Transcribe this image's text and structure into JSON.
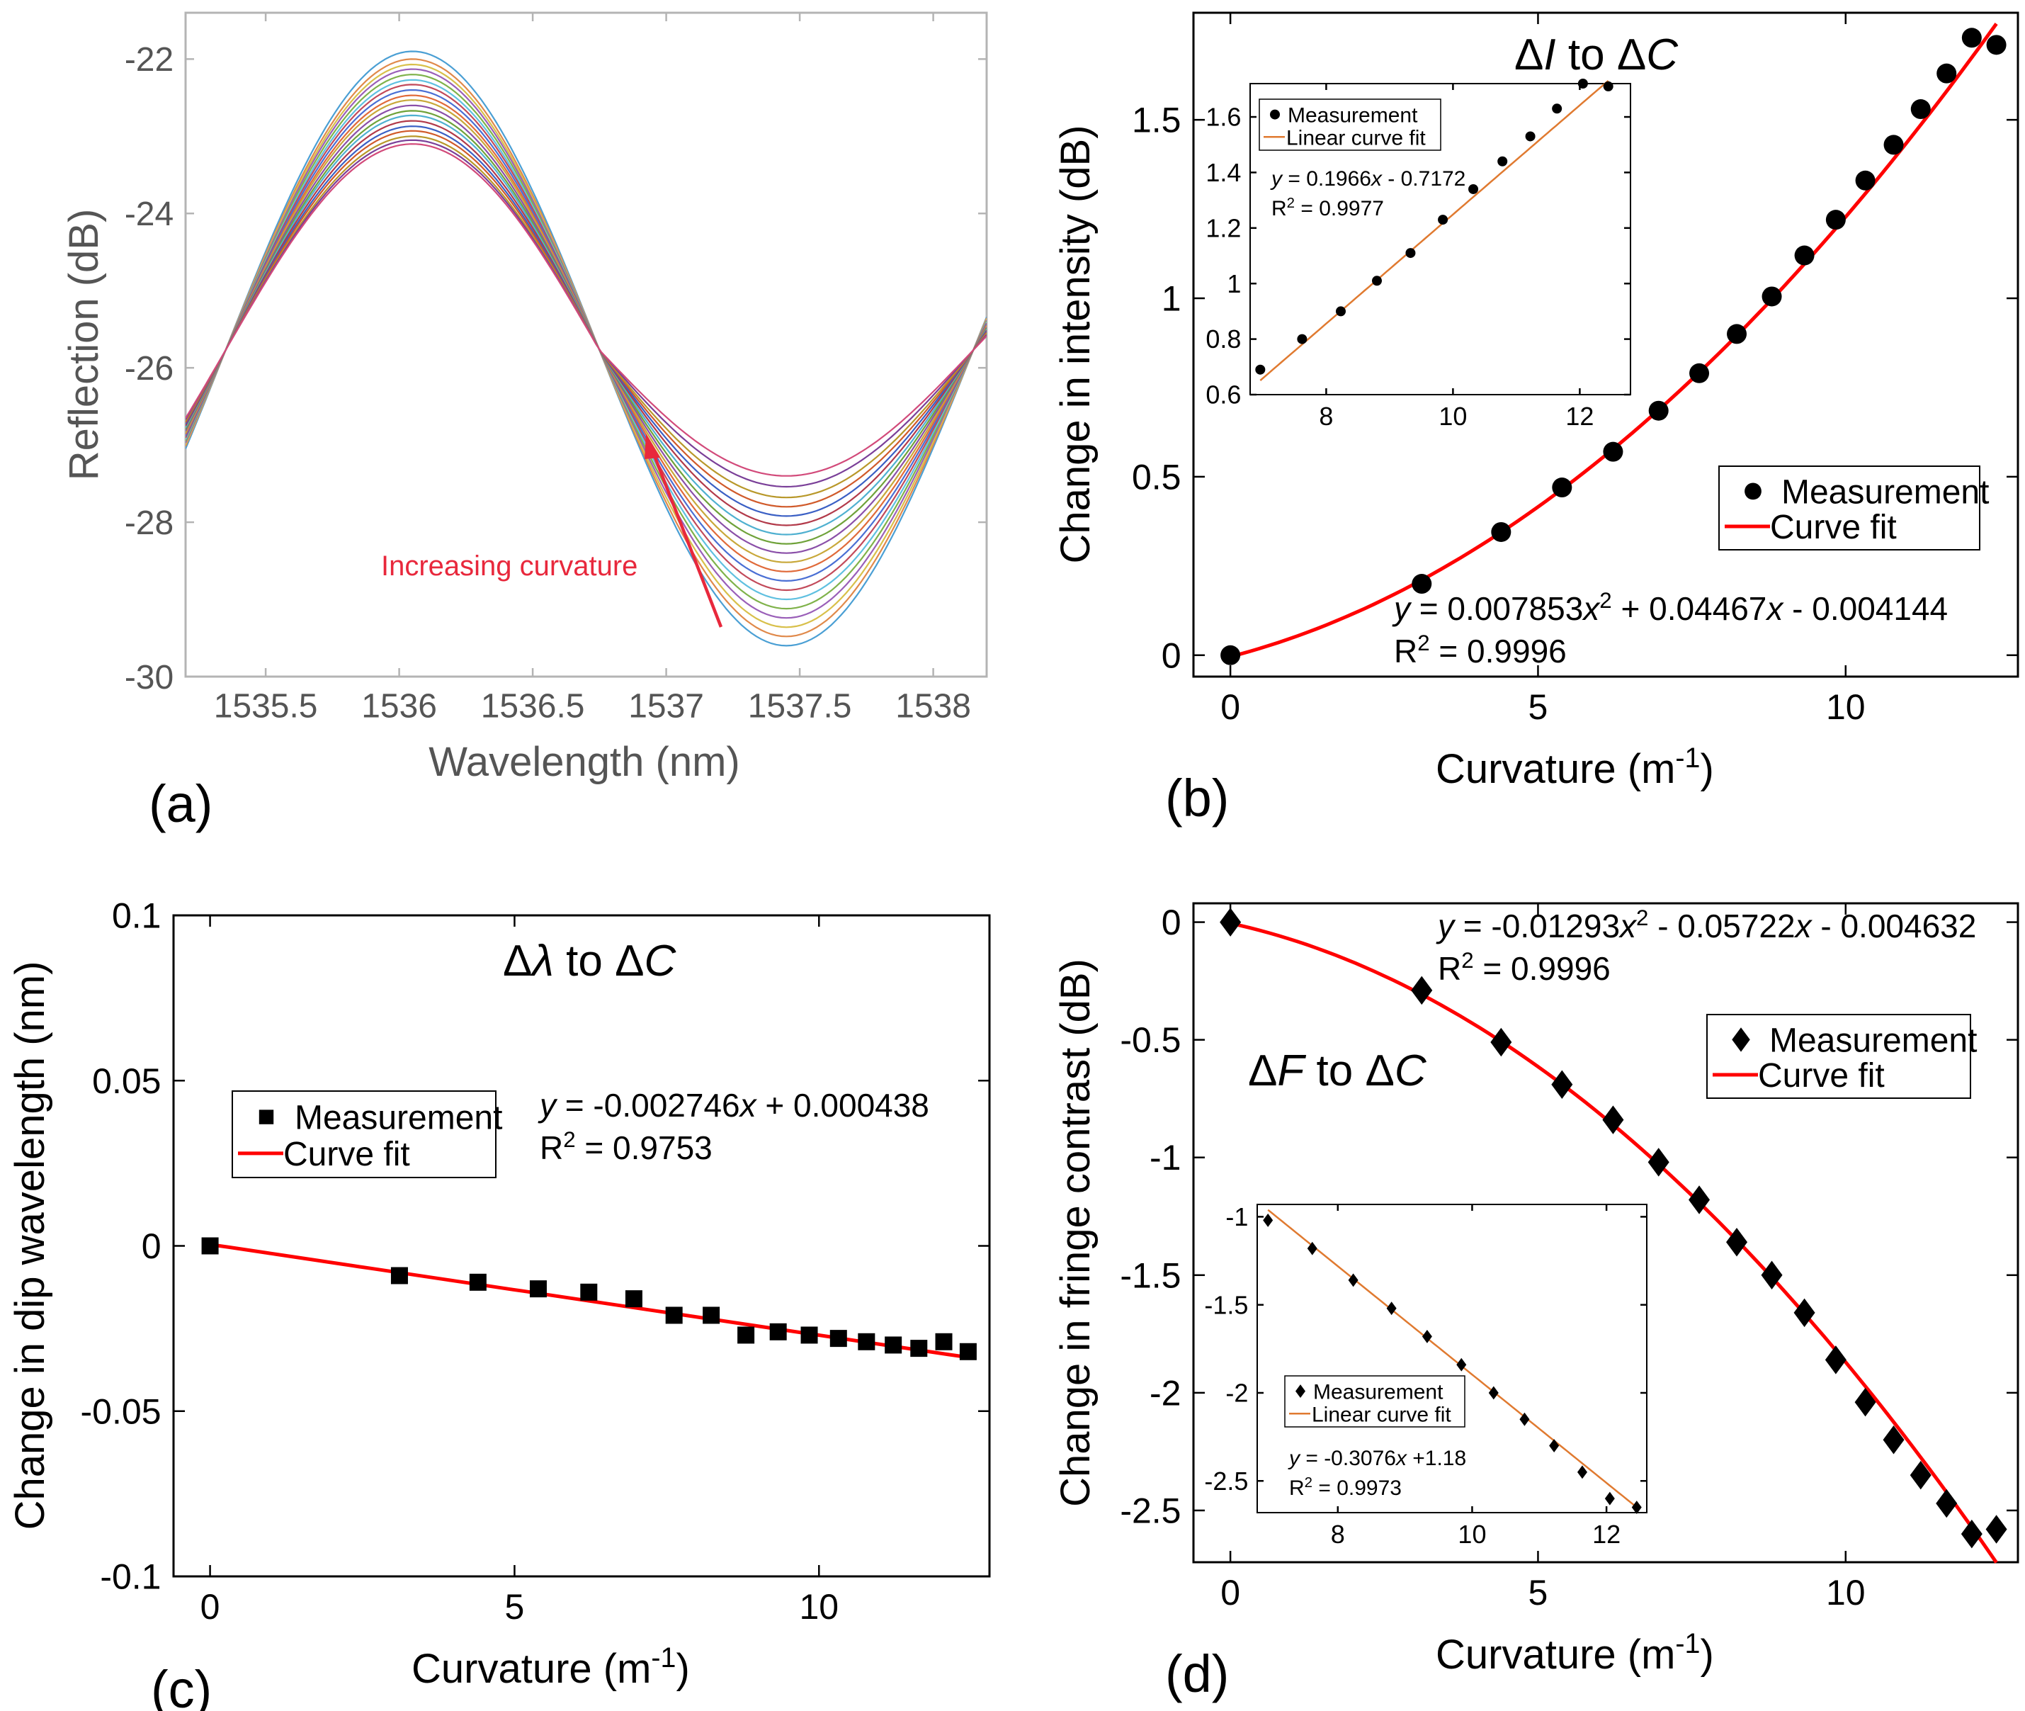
{
  "chart_data": [
    {
      "id": "a",
      "type": "line",
      "panel_label": "(a)",
      "xlabel": "Wavelength (nm)",
      "ylabel": "Reflection (dB)",
      "xlim": [
        1535.2,
        1538.2
      ],
      "ylim": [
        -30,
        -21.4
      ],
      "xticks": [
        1535.5,
        1536,
        1536.5,
        1537,
        1537.5,
        1538
      ],
      "xtick_labels": [
        "1535.5",
        "1536",
        "1536.5",
        "1537",
        "1537.5",
        "1538"
      ],
      "yticks": [
        -30,
        -28,
        -26,
        -24,
        -22
      ],
      "ytick_labels": [
        "-30",
        "-28",
        "-26",
        "-24",
        "-22"
      ],
      "annotation": "Increasing curvature",
      "annotation_color": "#e8283c",
      "series_description": "19 reflection spectra; peak near 1536.05 nm falls from -21.9 to -23.1 dB while dip near 1537.45 nm rises from -29.6 to -27.4 dB with increasing curvature",
      "peak_values": [
        -21.9,
        -22.0,
        -22.07,
        -22.13,
        -22.2,
        -22.27,
        -22.33,
        -22.4,
        -22.47,
        -22.53,
        -22.6,
        -22.67,
        -22.73,
        -22.8,
        -22.87,
        -22.93,
        -23.0,
        -23.05,
        -23.1
      ],
      "dip_values": [
        -29.6,
        -29.48,
        -29.36,
        -29.24,
        -29.12,
        -29.0,
        -28.88,
        -28.76,
        -28.64,
        -28.52,
        -28.4,
        -28.28,
        -28.16,
        -28.04,
        -27.92,
        -27.8,
        -27.68,
        -27.54,
        -27.4
      ],
      "series_colors": [
        "#4a9fd4",
        "#e0894a",
        "#d8c04a",
        "#9a5fb8",
        "#7fb24a",
        "#5fc0e0",
        "#c24a5a",
        "#4a6fd4",
        "#e06a3a",
        "#c8a83a",
        "#8a4fa8",
        "#6fa23a",
        "#4fb0d0",
        "#b23a4a",
        "#3a5fc4",
        "#d05a2a",
        "#b8982a",
        "#7a3f98",
        "#d24a7a"
      ]
    },
    {
      "id": "b",
      "type": "scatter",
      "panel_label": "(b)",
      "title_parts": [
        "Δ",
        "I",
        " to Δ",
        "C"
      ],
      "xlabel": "Curvature (m",
      "xlabel_sup": "-1",
      "xlabel_end": ")",
      "ylabel": "Change in intensity (dB)",
      "xlim": [
        -0.6,
        12.8
      ],
      "ylim": [
        -0.06,
        1.8
      ],
      "xticks": [
        0,
        5,
        10
      ],
      "xtick_labels": [
        "0",
        "5",
        "10"
      ],
      "yticks": [
        0,
        0.5,
        1,
        1.5
      ],
      "ytick_labels": [
        "0",
        "0.5",
        "1",
        "1.5"
      ],
      "x": [
        0,
        3.11,
        4.4,
        5.39,
        6.22,
        6.96,
        7.62,
        8.23,
        8.8,
        9.33,
        9.84,
        10.32,
        10.78,
        11.22,
        11.64,
        12.05,
        12.45
      ],
      "y": [
        0,
        0.2,
        0.345,
        0.47,
        0.57,
        0.685,
        0.79,
        0.9,
        1.005,
        1.12,
        1.22,
        1.33,
        1.43,
        1.53,
        1.63,
        1.73,
        1.71
      ],
      "fit": {
        "type": "quadratic",
        "coef": [
          0.007853,
          0.04467,
          -0.004144
        ]
      },
      "legend": [
        "Measurement",
        "Curve fit"
      ],
      "equation": [
        "y",
        " = 0.007853",
        "x",
        "2",
        " + 0.04467",
        "x",
        " - 0.004144"
      ],
      "r2_label": "R",
      "r2_sup": "2",
      "r2_value": " = 0.9996",
      "fit_color": "#ff0000",
      "inset": {
        "xlim": [
          6.8,
          12.8
        ],
        "ylim": [
          0.6,
          1.72
        ],
        "xticks": [
          8,
          10,
          12
        ],
        "xtick_labels": [
          "8",
          "10",
          "12"
        ],
        "yticks": [
          0.6,
          0.8,
          1,
          1.2,
          1.4,
          1.6
        ],
        "ytick_labels": [
          "0.6",
          "0.8",
          "1",
          "1.2",
          "1.4",
          "1.6"
        ],
        "x": [
          6.96,
          7.62,
          8.23,
          8.8,
          9.33,
          9.84,
          10.32,
          10.78,
          11.22,
          11.64,
          12.05,
          12.45
        ],
        "y": [
          0.69,
          0.8,
          0.9,
          1.01,
          1.11,
          1.23,
          1.34,
          1.44,
          1.53,
          1.63,
          1.72,
          1.71
        ],
        "fit": {
          "type": "linear",
          "slope": 0.1966,
          "intercept": -0.7172
        },
        "legend": [
          "Measurement",
          "Linear curve fit"
        ],
        "equation": [
          "y",
          " = 0.1966",
          "x",
          " - 0.7172"
        ],
        "r2_label": "R",
        "r2_sup": "2",
        "r2_value": " = 0.9977",
        "fit_color": "#e07a30"
      }
    },
    {
      "id": "c",
      "type": "scatter",
      "panel_label": "(c)",
      "title_parts": [
        "Δ",
        "λ",
        " to Δ",
        "C"
      ],
      "xlabel": "Curvature (m",
      "xlabel_sup": "-1",
      "xlabel_end": ")",
      "ylabel": "Change in dip wavelength (nm)",
      "xlim": [
        -0.6,
        12.8
      ],
      "ylim": [
        -0.1,
        0.1
      ],
      "xticks": [
        0,
        5,
        10
      ],
      "xtick_labels": [
        "0",
        "5",
        "10"
      ],
      "yticks": [
        -0.1,
        -0.05,
        0,
        0.05,
        0.1
      ],
      "ytick_labels": [
        "-0.1",
        "-0.05",
        "0",
        "0.05",
        "0.1"
      ],
      "x": [
        0,
        3.11,
        4.4,
        5.39,
        6.22,
        6.96,
        7.62,
        8.23,
        8.8,
        9.33,
        9.84,
        10.32,
        10.78,
        11.22,
        11.64,
        12.05,
        12.45
      ],
      "y": [
        0,
        -0.009,
        -0.011,
        -0.013,
        -0.014,
        -0.016,
        -0.021,
        -0.021,
        -0.027,
        -0.026,
        -0.027,
        -0.028,
        -0.029,
        -0.03,
        -0.031,
        -0.029,
        -0.032
      ],
      "fit": {
        "type": "linear",
        "slope": -0.002746,
        "intercept": 0.000438
      },
      "legend": [
        "Measurement",
        "Curve fit"
      ],
      "equation": [
        "y",
        " = -0.002746",
        "x",
        " + 0.000438"
      ],
      "r2_label": "R",
      "r2_sup": "2",
      "r2_value": " = 0.9753",
      "fit_color": "#ff0000"
    },
    {
      "id": "d",
      "type": "scatter",
      "panel_label": "(d)",
      "title_parts": [
        "Δ",
        "F",
        " to Δ",
        "C"
      ],
      "xlabel": "Curvature (m",
      "xlabel_sup": "-1",
      "xlabel_end": ")",
      "ylabel": "Change in fringe contrast (dB)",
      "xlim": [
        -0.6,
        12.8
      ],
      "ylim": [
        -2.72,
        0.08
      ],
      "xticks": [
        0,
        5,
        10
      ],
      "xtick_labels": [
        "0",
        "5",
        "10"
      ],
      "yticks": [
        -2.5,
        -2,
        -1.5,
        -1,
        -0.5,
        0
      ],
      "ytick_labels": [
        "-2.5",
        "-2",
        "-1.5",
        "-1",
        "-0.5",
        "0"
      ],
      "x": [
        0,
        3.11,
        4.4,
        5.39,
        6.22,
        6.96,
        7.62,
        8.23,
        8.8,
        9.33,
        9.84,
        10.32,
        10.78,
        11.22,
        11.64,
        12.05,
        12.45
      ],
      "y": [
        0,
        -0.29,
        -0.51,
        -0.69,
        -0.84,
        -1.02,
        -1.18,
        -1.36,
        -1.5,
        -1.66,
        -1.86,
        -2.04,
        -2.2,
        -2.35,
        -2.47,
        -2.6,
        -2.58
      ],
      "fit": {
        "type": "quadratic",
        "coef": [
          -0.01293,
          -0.05722,
          -0.004632
        ]
      },
      "legend": [
        "Measurement",
        "Curve fit"
      ],
      "equation": [
        "y",
        " = -0.01293",
        "x",
        "2",
        " - 0.05722",
        "x",
        " - 0.004632"
      ],
      "r2_label": "R",
      "r2_sup": "2",
      "r2_value": " = 0.9996",
      "fit_color": "#ff0000",
      "inset": {
        "xlim": [
          6.8,
          12.6
        ],
        "ylim": [
          -2.68,
          -0.93
        ],
        "xticks": [
          8,
          10,
          12
        ],
        "xtick_labels": [
          "8",
          "10",
          "12"
        ],
        "yticks": [
          -2.5,
          -2,
          -1.5,
          -1
        ],
        "ytick_labels": [
          "-2.5",
          "-2",
          "-1.5",
          "-1"
        ],
        "x": [
          6.96,
          7.62,
          8.23,
          8.8,
          9.33,
          9.84,
          10.32,
          10.78,
          11.22,
          11.64,
          12.05,
          12.45
        ],
        "y": [
          -1.02,
          -1.18,
          -1.36,
          -1.52,
          -1.68,
          -1.84,
          -2.0,
          -2.15,
          -2.3,
          -2.45,
          -2.6,
          -2.65
        ],
        "fit": {
          "type": "linear",
          "slope": -0.3076,
          "intercept": 1.18
        },
        "legend": [
          "Measurement",
          "Linear curve fit"
        ],
        "equation": [
          "y",
          " = -0.3076",
          "x",
          " +1.18"
        ],
        "r2_label": "R",
        "r2_sup": "2",
        "r2_value": " = 0.9973",
        "fit_color": "#e07a30"
      }
    }
  ]
}
